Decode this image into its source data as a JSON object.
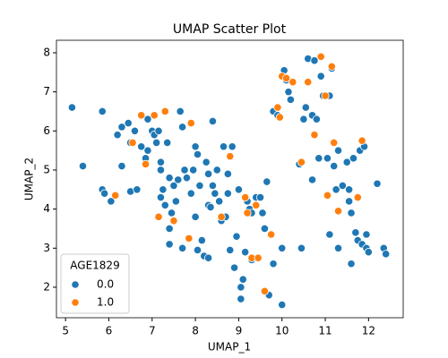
{
  "chart_data": {
    "type": "scatter",
    "title": "UMAP Scatter Plot",
    "x_label": "UMAP_1",
    "y_label": "UMAP_2",
    "legend_title": "AGE1829",
    "legend_position": "lower left",
    "xlim": [
      4.79,
      12.8
    ],
    "ylim": [
      1.22,
      8.32
    ],
    "xticks": [
      5,
      6,
      7,
      8,
      9,
      10,
      11,
      12
    ],
    "yticks": [
      2,
      3,
      4,
      5,
      6,
      7,
      8
    ],
    "series": [
      {
        "name": "0.0",
        "color": "#1f77b4",
        "x": [
          5.15,
          5.4,
          5.85,
          5.85,
          5.9,
          6.05,
          6.2,
          6.3,
          6.3,
          6.45,
          6.5,
          6.5,
          6.6,
          6.65,
          6.75,
          6.85,
          6.9,
          6.9,
          7.0,
          7.05,
          7.1,
          7.15,
          7.2,
          7.2,
          7.25,
          7.3,
          7.35,
          7.4,
          7.4,
          7.4,
          7.45,
          7.5,
          7.55,
          7.6,
          7.65,
          7.7,
          7.75,
          7.8,
          7.9,
          7.95,
          8.0,
          8.0,
          8.05,
          8.1,
          8.15,
          8.2,
          8.25,
          8.3,
          8.3,
          8.35,
          8.4,
          8.4,
          8.45,
          8.5,
          8.55,
          8.6,
          8.65,
          8.7,
          8.75,
          8.8,
          8.85,
          8.9,
          8.95,
          9.0,
          9.05,
          9.1,
          9.15,
          9.2,
          9.25,
          9.3,
          9.4,
          9.5,
          9.55,
          9.6,
          9.7,
          9.8,
          9.8,
          9.9,
          10.0,
          10.0,
          10.05,
          10.1,
          10.15,
          10.2,
          10.4,
          10.45,
          10.55,
          10.6,
          10.7,
          10.75,
          10.8,
          10.85,
          10.9,
          10.95,
          11.05,
          11.1,
          11.15,
          11.2,
          11.25,
          11.3,
          11.4,
          11.5,
          11.55,
          11.6,
          11.65,
          11.7,
          11.75,
          11.8,
          11.85,
          11.9,
          11.95,
          12.0,
          12.2,
          12.35,
          12.4,
          8.05,
          7.7,
          9.3,
          8.75,
          7.2,
          11.1,
          11.3,
          11.6,
          11.95,
          11.55,
          10.7,
          10.5,
          8.3,
          9.65,
          9.05
        ],
        "values": [
          6.6,
          5.1,
          6.5,
          4.5,
          4.4,
          4.2,
          5.9,
          6.1,
          5.1,
          6.2,
          5.7,
          4.45,
          6.0,
          4.5,
          5.6,
          5.3,
          5.5,
          6.3,
          6.0,
          5.9,
          5.7,
          6.0,
          5.2,
          5.0,
          4.5,
          4.1,
          5.7,
          4.8,
          3.5,
          3.1,
          3.9,
          4.6,
          4.2,
          4.75,
          6.5,
          3.0,
          5.0,
          4.8,
          4.4,
          5.0,
          5.6,
          3.8,
          5.4,
          4.6,
          3.2,
          2.8,
          5.2,
          4.9,
          4.1,
          4.05,
          6.25,
          4.6,
          4.4,
          5.0,
          4.2,
          3.7,
          5.6,
          3.8,
          4.9,
          2.95,
          5.6,
          2.5,
          3.3,
          4.5,
          2.0,
          2.2,
          2.9,
          4.2,
          4.0,
          3.9,
          4.3,
          4.3,
          3.9,
          3.5,
          1.8,
          2.6,
          6.5,
          6.4,
          1.55,
          3.0,
          7.55,
          7.3,
          7.0,
          6.8,
          5.15,
          3.0,
          6.6,
          7.85,
          6.4,
          7.8,
          6.3,
          5.3,
          7.4,
          6.9,
          5.3,
          6.9,
          7.6,
          5.1,
          4.5,
          5.5,
          4.6,
          5.2,
          4.5,
          3.9,
          5.3,
          3.4,
          3.2,
          5.5,
          3.1,
          5.6,
          3.0,
          2.9,
          4.65,
          3.0,
          2.85,
          2.95,
          6.1,
          2.7,
          4.4,
          4.3,
          3.35,
          3.0,
          2.6,
          3.35,
          4.2,
          4.75,
          6.3,
          2.75,
          4.7,
          1.7
        ]
      },
      {
        "name": "1.0",
        "color": "#ff7f0e",
        "x": [
          6.15,
          6.55,
          6.75,
          6.85,
          7.05,
          7.15,
          7.3,
          7.5,
          7.85,
          7.9,
          8.6,
          9.15,
          9.2,
          9.3,
          9.4,
          9.45,
          9.6,
          9.75,
          9.9,
          9.95,
          10.0,
          10.25,
          10.45,
          10.6,
          10.75,
          10.9,
          11.0,
          11.05,
          11.15,
          11.2,
          11.3,
          11.75,
          11.85,
          8.8,
          10.1
        ],
        "values": [
          4.35,
          5.7,
          6.4,
          5.15,
          6.4,
          3.8,
          6.5,
          3.7,
          3.25,
          6.2,
          3.8,
          4.3,
          3.9,
          2.75,
          4.1,
          2.75,
          1.9,
          3.35,
          6.6,
          6.35,
          7.4,
          7.25,
          5.2,
          7.25,
          5.9,
          7.9,
          6.9,
          4.35,
          7.65,
          5.7,
          3.95,
          4.3,
          5.75,
          5.35,
          7.35
        ]
      }
    ]
  }
}
